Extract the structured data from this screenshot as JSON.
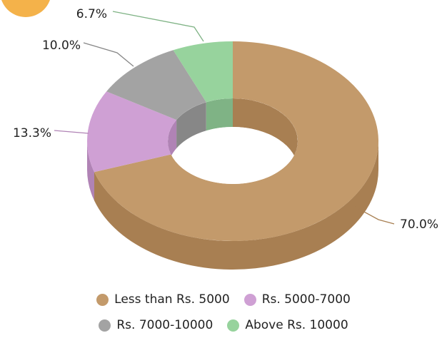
{
  "chart_data": {
    "type": "pie",
    "style": "3d-donut",
    "categories": [
      "Less than Rs. 5000",
      "Rs. 5000-7000",
      "Rs. 7000-10000",
      "Above Rs. 10000"
    ],
    "values": [
      70.0,
      13.3,
      10.0,
      6.7
    ],
    "value_labels": [
      "70.0%",
      "13.3%",
      "10.0%",
      "6.7%"
    ],
    "colors": [
      "#c39a6b",
      "#cfa0d4",
      "#a3a3a3",
      "#97d39d"
    ],
    "side_colors": [
      "#a87f52",
      "#b083b5",
      "#878787",
      "#7fb385"
    ],
    "legend_position": "bottom"
  },
  "legend": {
    "rows": [
      [
        {
          "label": "Less than Rs. 5000",
          "color": "#c39a6b"
        },
        {
          "label": "Rs. 5000-7000",
          "color": "#cfa0d4"
        }
      ],
      [
        {
          "label": "Rs. 7000-10000",
          "color": "#a3a3a3"
        },
        {
          "label": "Above Rs. 10000",
          "color": "#97d39d"
        }
      ]
    ]
  },
  "decor": {
    "corner_badge_color": "#f4b24a"
  }
}
